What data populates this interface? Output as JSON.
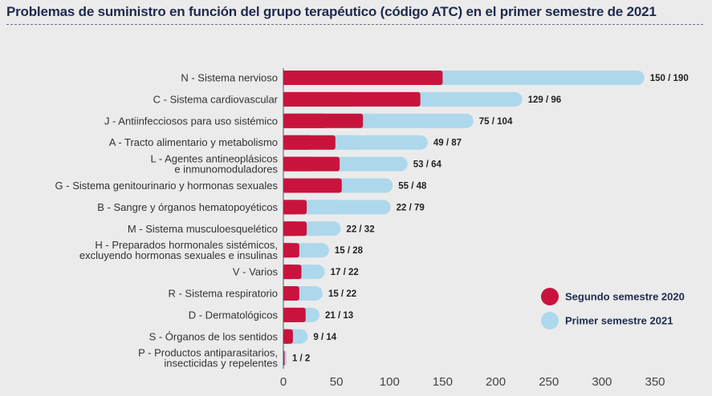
{
  "chart_data": {
    "type": "bar",
    "orientation": "horizontal",
    "stacked": true,
    "title": "Problemas de suministro en función del grupo terapéutico (código ATC) en el primer semestre de 2021",
    "categories": [
      [
        "N - Sistema nervioso"
      ],
      [
        "C - Sistema cardiovascular"
      ],
      [
        "J - Antiinfecciosos para uso sistémico"
      ],
      [
        "A - Tracto alimentario y metabolismo"
      ],
      [
        "L - Agentes antineoplásicos",
        "e inmunomoduladores"
      ],
      [
        "G - Sistema genitourinario y hormonas sexuales"
      ],
      [
        "B - Sangre y órganos hematopoyéticos"
      ],
      [
        "M - Sistema musculoesquelético"
      ],
      [
        "H - Preparados hormonales sistémicos,",
        "excluyendo hormonas sexuales e insulinas"
      ],
      [
        "V - Varios"
      ],
      [
        "R - Sistema respiratorio"
      ],
      [
        "D - Dermatológicos"
      ],
      [
        "S - Órganos de los sentidos"
      ],
      [
        "P - Productos antiparasitarios,",
        "insecticidas y repelentes"
      ]
    ],
    "series": [
      {
        "name": "Segundo semestre 2020",
        "color": "#c8143c",
        "values": [
          150,
          129,
          75,
          49,
          53,
          55,
          22,
          22,
          15,
          17,
          15,
          21,
          9,
          1
        ]
      },
      {
        "name": "Primer semestre 2021",
        "color": "#add8ec",
        "values": [
          190,
          96,
          104,
          87,
          64,
          48,
          79,
          32,
          28,
          22,
          22,
          13,
          14,
          2
        ]
      }
    ],
    "data_labels": [
      "150 / 190",
      "129 / 96",
      "75 / 104",
      "49 / 87",
      "53 / 64",
      "55 / 48",
      "22 / 79",
      "22 / 32",
      "15 / 28",
      "17 / 22",
      "15 / 22",
      "21 / 13",
      "9 / 14",
      "1 / 2"
    ],
    "xlim": [
      0,
      350
    ],
    "xticks": [
      "0",
      "50",
      "100",
      "150",
      "200",
      "250",
      "300",
      "350"
    ],
    "grid": false,
    "legend_position": "right"
  }
}
